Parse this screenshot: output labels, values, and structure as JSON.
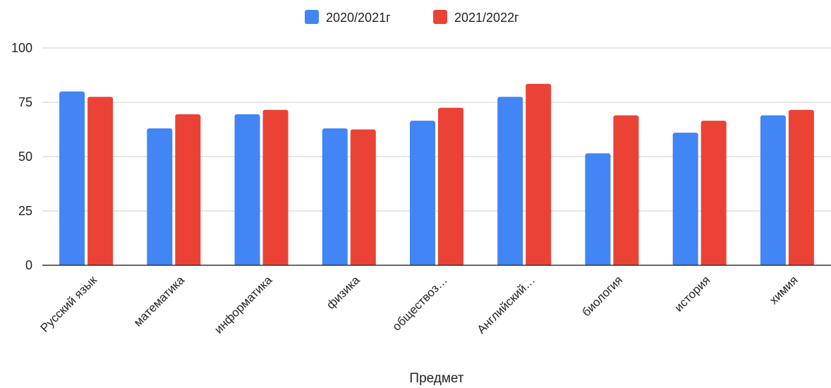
{
  "chart_data": {
    "type": "bar",
    "title": "",
    "xlabel": "Предмет",
    "ylabel": "",
    "ylim": [
      0,
      100
    ],
    "yticks": [
      0,
      25,
      50,
      75,
      100
    ],
    "grid": true,
    "legend_position": "top",
    "categories": [
      "Русский язык",
      "математика",
      "информатика",
      "физика",
      "обществоз…",
      "Английский…",
      "биология",
      "история",
      "химия"
    ],
    "series": [
      {
        "name": "2020/2021г",
        "color": "#4285f4",
        "values": [
          80,
          63,
          69.5,
          63,
          66.5,
          77.5,
          51.5,
          61,
          69
        ]
      },
      {
        "name": "2021/2022г",
        "color": "#ea4335",
        "values": [
          77.5,
          69.5,
          71.5,
          62.5,
          72.5,
          83.5,
          69,
          66.5,
          71.5
        ]
      }
    ]
  }
}
